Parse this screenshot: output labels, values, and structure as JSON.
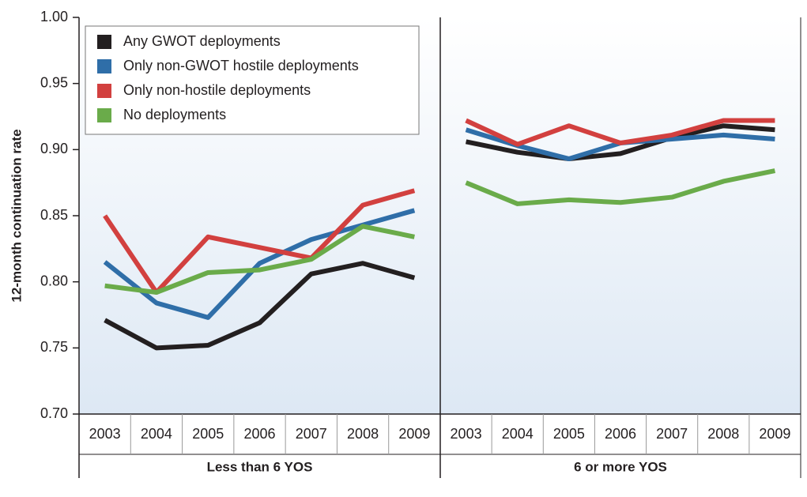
{
  "chart_data": [
    {
      "type": "line",
      "ylabel": "12-month continuation rate",
      "xlabel": "Less than 6 YOS",
      "ylim": [
        0.7,
        1.0
      ],
      "yticks": [
        {
          "value": 0.7,
          "label": "0.70"
        },
        {
          "value": 0.75,
          "label": "0.75"
        },
        {
          "value": 0.8,
          "label": "0.80"
        },
        {
          "value": 0.85,
          "label": "0.85"
        },
        {
          "value": 0.9,
          "label": "0.90"
        },
        {
          "value": 0.95,
          "label": "0.95"
        },
        {
          "value": 1.0,
          "label": "1.00"
        }
      ],
      "legend": "upper left",
      "categories": [
        "2003",
        "2004",
        "2005",
        "2006",
        "2007",
        "2008",
        "2009"
      ],
      "series": [
        {
          "name": "Any GWOT deployments",
          "color": "#231f20",
          "values": [
            0.771,
            0.75,
            0.752,
            0.769,
            0.806,
            0.814,
            0.803
          ]
        },
        {
          "name": "Only non-GWOT hostile deployments",
          "color": "#2f6ea8",
          "values": [
            0.815,
            0.784,
            0.773,
            0.814,
            0.832,
            0.843,
            0.854
          ]
        },
        {
          "name": "Only non-hostile deployments",
          "color": "#d2403f",
          "values": [
            0.85,
            0.792,
            0.834,
            0.826,
            0.818,
            0.858,
            0.869
          ]
        },
        {
          "name": "No deployments",
          "color": "#6aab4a",
          "values": [
            0.797,
            0.792,
            0.807,
            0.809,
            0.817,
            0.842,
            0.834
          ]
        }
      ]
    },
    {
      "type": "line",
      "xlabel": "6 or more YOS",
      "ylim": [
        0.7,
        1.0
      ],
      "categories": [
        "2003",
        "2004",
        "2005",
        "2006",
        "2007",
        "2008",
        "2009"
      ],
      "series": [
        {
          "color": "#231f20",
          "values": [
            0.906,
            0.898,
            0.893,
            0.897,
            0.909,
            0.918,
            0.915
          ]
        },
        {
          "color": "#2f6ea8",
          "values": [
            0.915,
            0.903,
            0.893,
            0.905,
            0.908,
            0.911,
            0.908
          ]
        },
        {
          "color": "#d2403f",
          "values": [
            0.922,
            0.904,
            0.918,
            0.905,
            0.911,
            0.922,
            0.922
          ]
        },
        {
          "color": "#6aab4a",
          "values": [
            0.875,
            0.859,
            0.862,
            0.86,
            0.864,
            0.876,
            0.884
          ]
        }
      ]
    }
  ]
}
